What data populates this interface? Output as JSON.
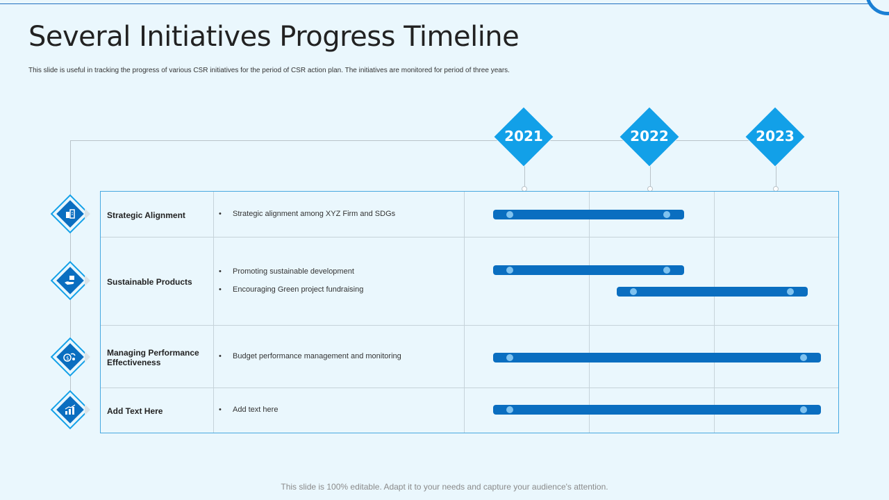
{
  "title": "Several Initiatives Progress Timeline",
  "subtitle": "This slide is useful in tracking the progress of  various CSR initiatives for the period of CSR action plan. The initiatives are monitored for period of three years.",
  "footer": "This slide is 100% editable. Adapt it to your needs and capture your audience's attention.",
  "years": [
    "2021",
    "2022",
    "2023"
  ],
  "rows": [
    {
      "title": "Strategic Alignment",
      "icon": "strategy-icon",
      "bullets": [
        "Strategic alignment among XYZ  Firm and SDGs"
      ],
      "bars": [
        {
          "from": "2021",
          "to": "2022"
        }
      ]
    },
    {
      "title": "Sustainable Products",
      "icon": "product-hand-icon",
      "bullets": [
        "Promoting sustainable development",
        "Encouraging Green project fundraising"
      ],
      "bars": [
        {
          "from": "2021",
          "to": "2022"
        },
        {
          "from": "2022",
          "to": "2023"
        }
      ]
    },
    {
      "title": "Managing Performance Effectiveness",
      "icon": "performance-money-icon",
      "bullets": [
        "Budget performance management and monitoring"
      ],
      "bars": [
        {
          "from": "2021",
          "to": "2023"
        }
      ]
    },
    {
      "title": "Add Text Here",
      "icon": "growth-chart-icon",
      "bullets": [
        "Add text here"
      ],
      "bars": [
        {
          "from": "2021",
          "to": "2023"
        }
      ]
    }
  ],
  "colors": {
    "accent": "#12a0e8",
    "bar": "#0a6ec0",
    "knob": "#7fc2ef",
    "background": "#eaf7fd"
  }
}
